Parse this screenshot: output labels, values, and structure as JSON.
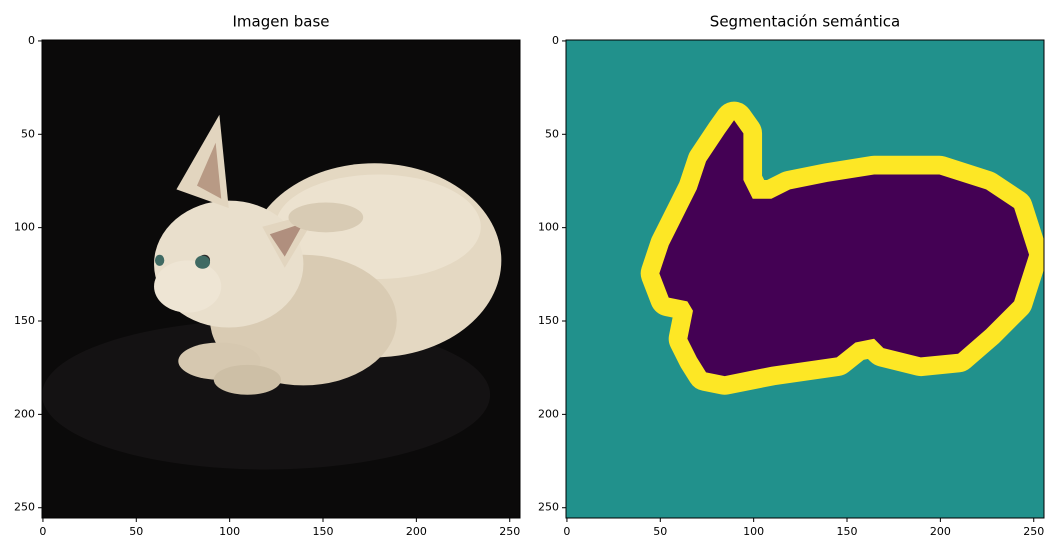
{
  "chart_data": [
    {
      "type": "image",
      "title": "Imagen base",
      "xlim": [
        -0.5,
        255.5
      ],
      "ylim": [
        255.5,
        -0.5
      ],
      "xticks": [
        0,
        50,
        100,
        150,
        200,
        250
      ],
      "yticks": [
        0,
        50,
        100,
        150,
        200,
        250
      ]
    },
    {
      "type": "image",
      "title": "Segmentación semántica",
      "xlim": [
        -0.5,
        255.5
      ],
      "ylim": [
        255.5,
        -0.5
      ],
      "xticks": [
        0,
        50,
        100,
        150,
        200,
        250
      ],
      "yticks": [
        0,
        50,
        100,
        150,
        200,
        250
      ]
    }
  ]
}
